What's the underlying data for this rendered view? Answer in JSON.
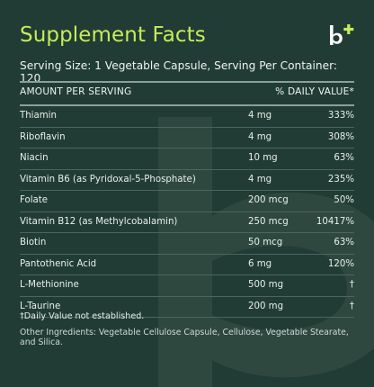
{
  "header": {
    "title": "Supplement Facts",
    "logo_text": "b+"
  },
  "serving": {
    "text": "Serving Size: 1 Vegetable Capsule, Serving Per Container: 120"
  },
  "table": {
    "col_amount": "AMOUNT PER SERVING",
    "col_dv": "% DAILY VALUE*",
    "rows": [
      {
        "name": "Thiamin",
        "amount": "4 mg",
        "dv": "333%"
      },
      {
        "name": "Riboflavin",
        "amount": "4 mg",
        "dv": "308%"
      },
      {
        "name": "Niacin",
        "amount": "10 mg",
        "dv": "63%"
      },
      {
        "name": "Vitamin B6 (as Pyridoxal-5-Phosphate)",
        "amount": "4 mg",
        "dv": "235%"
      },
      {
        "name": "Folate",
        "amount": "200 mcg",
        "dv": "50%"
      },
      {
        "name": "Vitamin B12 (as Methylcobalamin)",
        "amount": "250 mcg",
        "dv": "10417%"
      },
      {
        "name": "Biotin",
        "amount": "50 mcg",
        "dv": "63%"
      },
      {
        "name": "Pantothenic Acid",
        "amount": "6 mg",
        "dv": "120%"
      },
      {
        "name": "L-Methionine",
        "amount": "500 mg",
        "dv": "†"
      },
      {
        "name": "L-Taurine",
        "amount": "200 mg",
        "dv": "†"
      }
    ]
  },
  "footnote": "†Daily Value not established.",
  "ingredients": "Other Ingredients: Vegetable Cellulose Capsule, Cellulose, Vegetable Stearate, and Silica.",
  "colors": {
    "background": "#213c34",
    "accent": "#c6ec5b",
    "text": "#e8efec"
  },
  "icons": {
    "logo": "brand-logo-icon",
    "watermark": "brand-watermark-icon"
  }
}
